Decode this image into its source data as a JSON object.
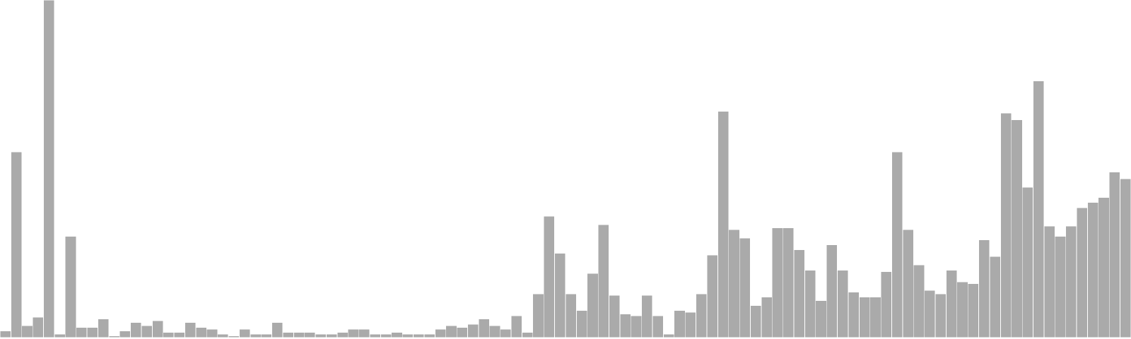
{
  "chart_data": {
    "type": "bar",
    "values": [
      2,
      55,
      3.5,
      6,
      100,
      1,
      30,
      3,
      3,
      5.5,
      0.5,
      2,
      4.5,
      3.5,
      5,
      1.5,
      1.5,
      4.5,
      3,
      2.5,
      1,
      0.5,
      2.5,
      1,
      1,
      4.5,
      1.5,
      1.5,
      1.5,
      1,
      1,
      1.5,
      2.5,
      2.5,
      1,
      1,
      1.5,
      1,
      1,
      1,
      2.5,
      3.5,
      3,
      4,
      5.5,
      3.5,
      2.5,
      6.5,
      1.5,
      13,
      36,
      25,
      13,
      8,
      19,
      33.5,
      12.5,
      7,
      6.5,
      12.5,
      6.5,
      1,
      8,
      7.5,
      13,
      24.5,
      67,
      32,
      29.5,
      9.5,
      12,
      32.5,
      32.5,
      26,
      20,
      11,
      27.5,
      20,
      13.5,
      12,
      12,
      19.5,
      55,
      32,
      21.5,
      14,
      13,
      20,
      16.5,
      16,
      29,
      24,
      66.5,
      64.5,
      44.5,
      76,
      33,
      30,
      33,
      38.5,
      40,
      41.5,
      49,
      47
    ],
    "ylim": [
      0,
      100
    ],
    "grid": false,
    "legend": "none",
    "colors": {
      "bar": "#aaaaaa",
      "bar_edge": "#ffffff",
      "background": "#ffffff"
    }
  }
}
